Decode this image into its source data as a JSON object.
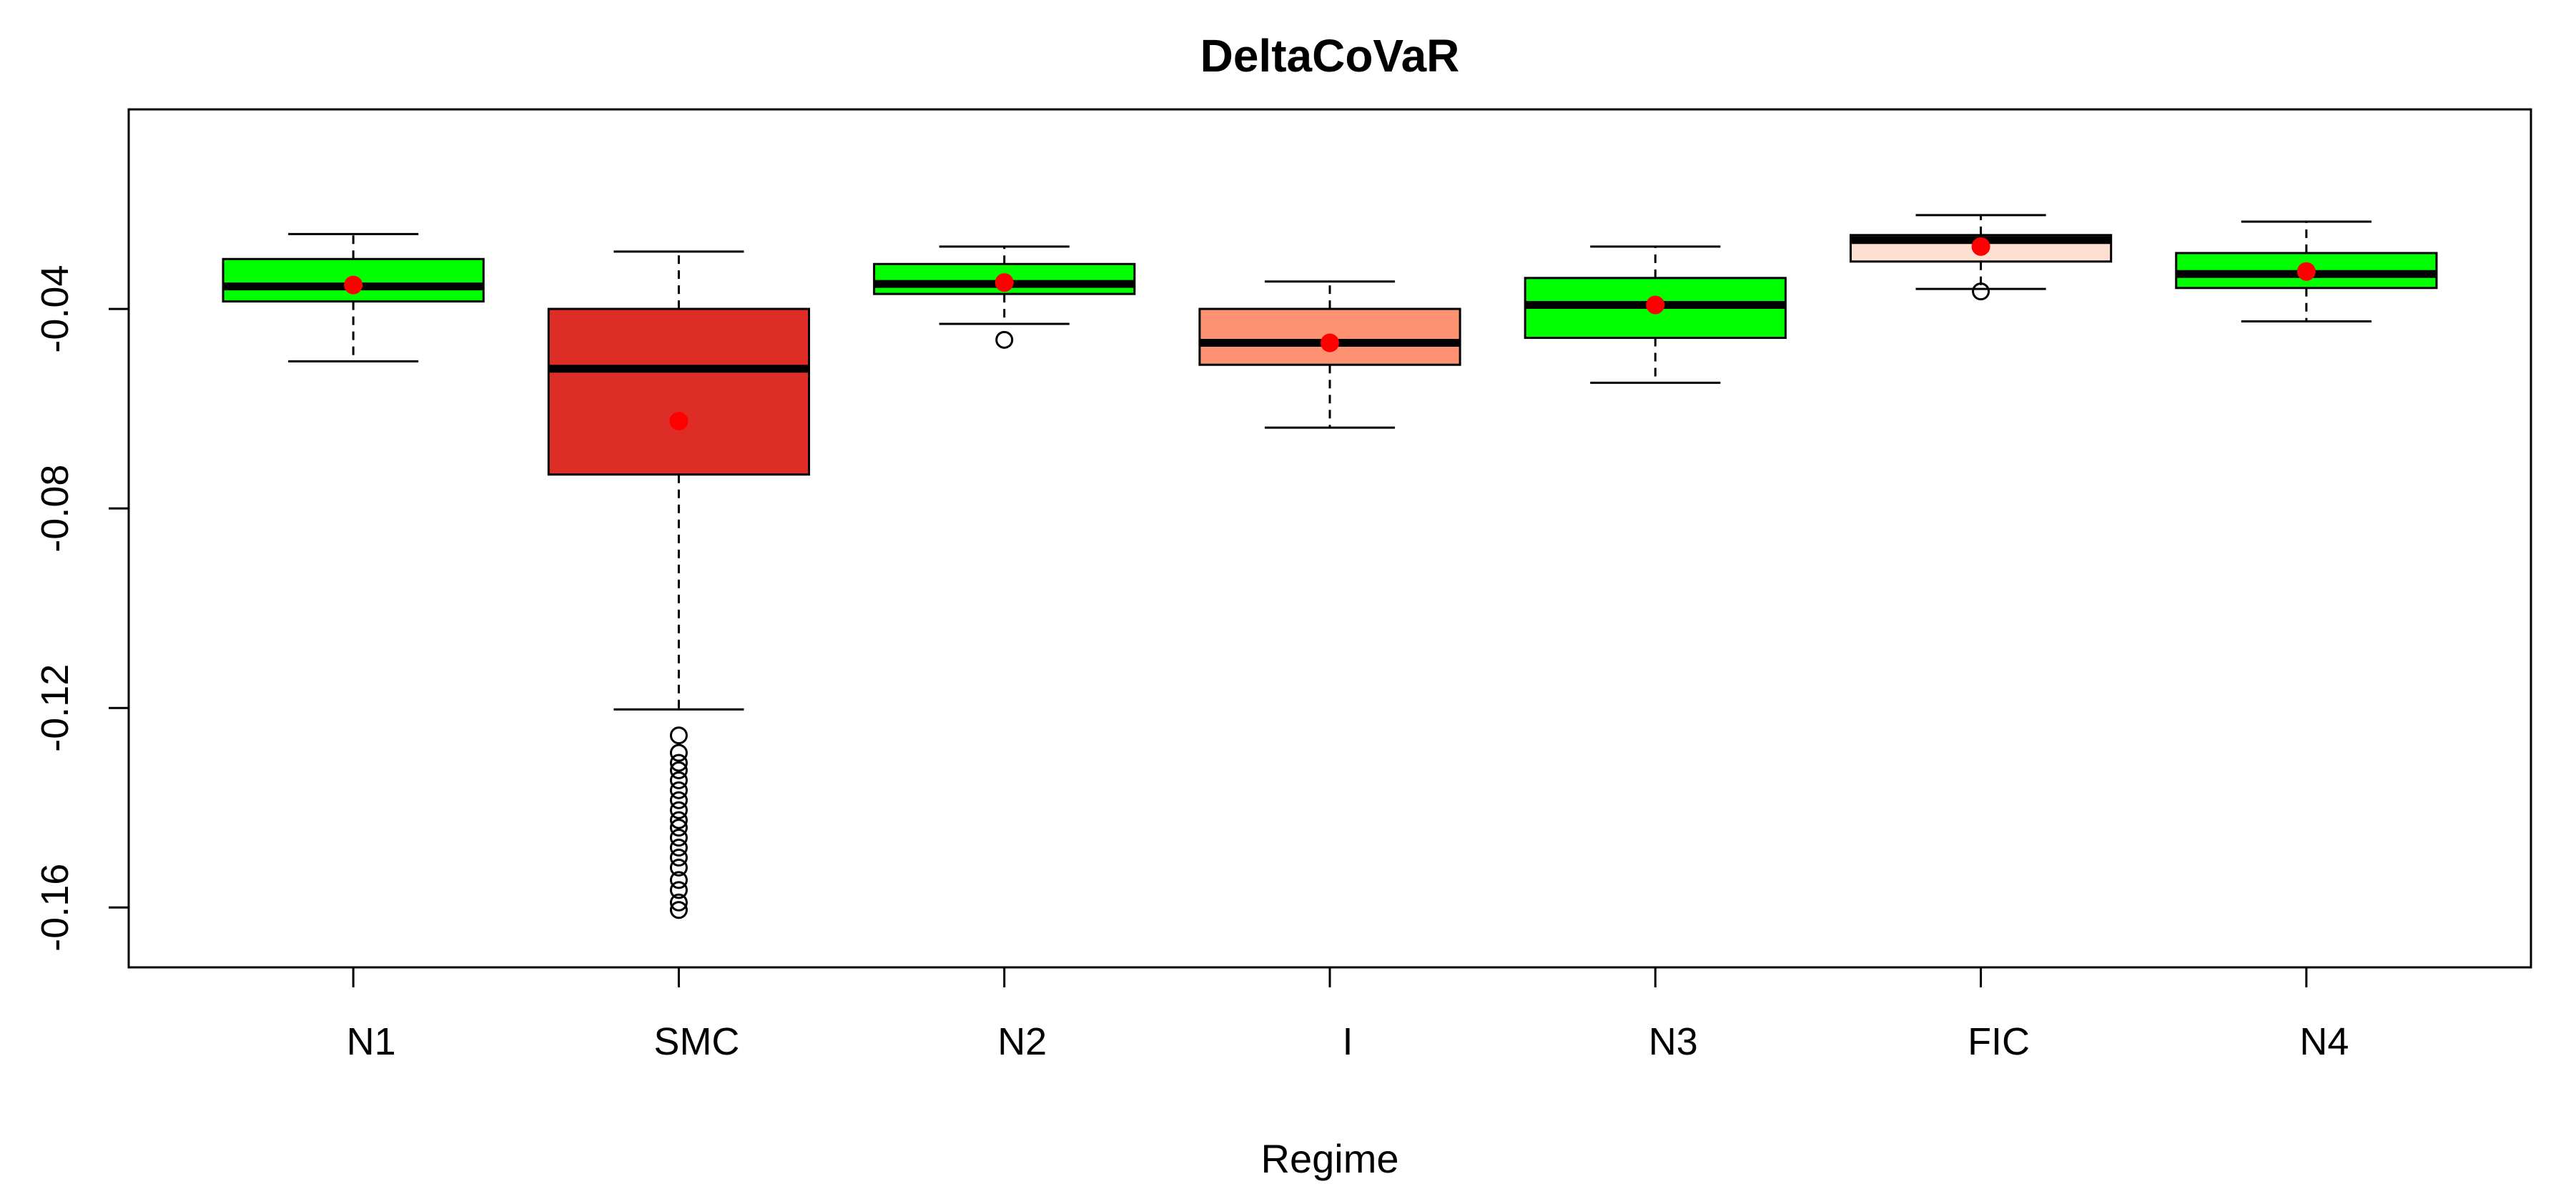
{
  "chart_data": {
    "type": "boxplot",
    "title": "DeltaCoVaR",
    "xlabel": "Regime",
    "ylabel": "",
    "ylim": [
      -0.172,
      0.0
    ],
    "yticks": [
      -0.04,
      -0.08,
      -0.12,
      -0.16
    ],
    "ytick_labels": [
      "-0.04",
      "-0.08",
      "-0.12",
      "-0.16"
    ],
    "grid": false,
    "legend": "none",
    "mean_color": "#ff0000",
    "categories": [
      "N1",
      "SMC",
      "N2",
      "I",
      "N3",
      "FIC",
      "N4"
    ],
    "boxes": [
      {
        "label": "N1",
        "color": "#00ff00",
        "whisker_low": -0.0505,
        "q1": -0.0385,
        "median": -0.0355,
        "q3": -0.03,
        "whisker_high": -0.025,
        "mean": -0.0352,
        "outliers": []
      },
      {
        "label": "SMC",
        "color": "#de2d26",
        "whisker_low": -0.1203,
        "q1": -0.0732,
        "median": -0.052,
        "q3": -0.04,
        "whisker_high": -0.0285,
        "mean": -0.0625,
        "outliers": [
          -0.1255,
          -0.129,
          -0.131,
          -0.1325,
          -0.1345,
          -0.1365,
          -0.1385,
          -0.1405,
          -0.1425,
          -0.144,
          -0.146,
          -0.148,
          -0.15,
          -0.152,
          -0.1545,
          -0.1565,
          -0.159,
          -0.1605
        ]
      },
      {
        "label": "N2",
        "color": "#00ff00",
        "whisker_low": -0.043,
        "q1": -0.037,
        "median": -0.035,
        "q3": -0.031,
        "whisker_high": -0.0275,
        "mean": -0.0347,
        "outliers": [
          -0.0462
        ]
      },
      {
        "label": "I",
        "color": "#fc9272",
        "whisker_low": -0.0638,
        "q1": -0.0512,
        "median": -0.0468,
        "q3": -0.04,
        "whisker_high": -0.0345,
        "mean": -0.0468,
        "outliers": []
      },
      {
        "label": "N3",
        "color": "#00ff00",
        "whisker_low": -0.0548,
        "q1": -0.0458,
        "median": -0.0392,
        "q3": -0.0338,
        "whisker_high": -0.0275,
        "mean": -0.0392,
        "outliers": []
      },
      {
        "label": "FIC",
        "color": "#fee0d2",
        "whisker_low": -0.036,
        "q1": -0.0305,
        "median": -0.0262,
        "q3": -0.0252,
        "whisker_high": -0.0212,
        "mean": -0.0275,
        "outliers": [
          -0.0365
        ]
      },
      {
        "label": "N4",
        "color": "#00ff00",
        "whisker_low": -0.0425,
        "q1": -0.0358,
        "median": -0.033,
        "q3": -0.0288,
        "whisker_high": -0.0225,
        "mean": -0.0325,
        "outliers": []
      }
    ]
  }
}
